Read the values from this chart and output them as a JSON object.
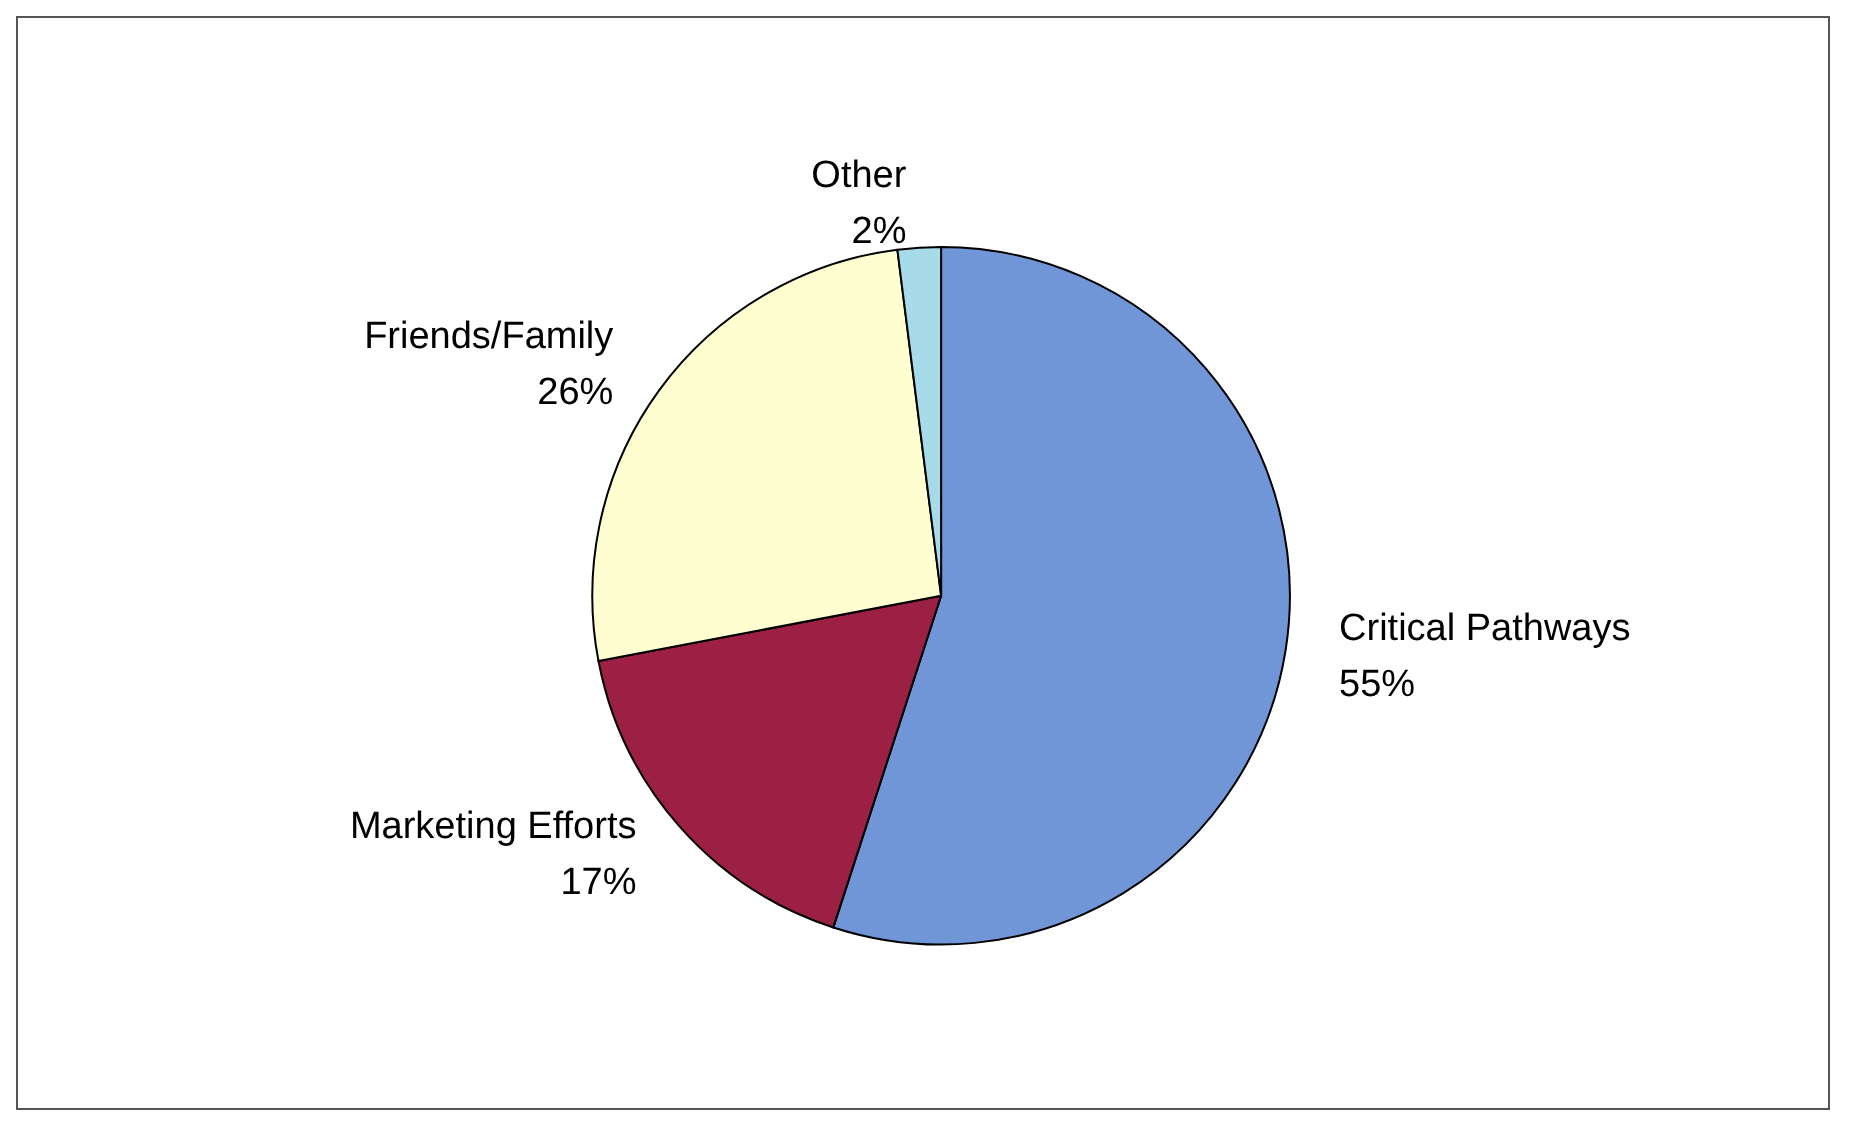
{
  "chart_data": {
    "type": "pie",
    "categories": [
      "Critical Pathways",
      "Marketing Efforts",
      "Friends/Family",
      "Other"
    ],
    "values": [
      55,
      17,
      26,
      2
    ],
    "colors": [
      "#7096d8",
      "#9c1f44",
      "#fefed0",
      "#a8dbe9"
    ],
    "value_labels": [
      "55%",
      "17%",
      "26%",
      "2%"
    ],
    "legend": false
  }
}
